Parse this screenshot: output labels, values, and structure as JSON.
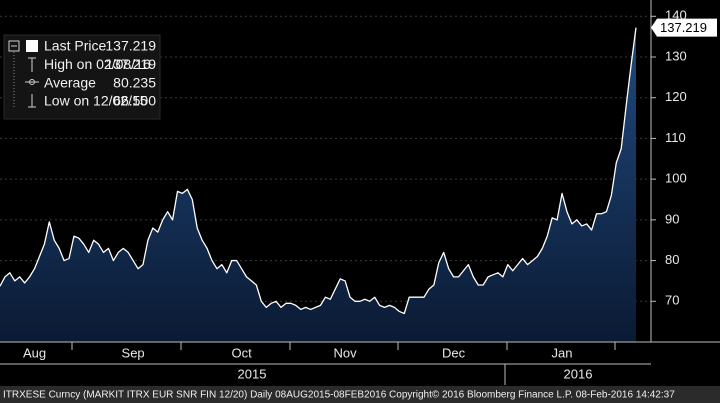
{
  "chart_data": {
    "type": "area",
    "color": "#ffffff",
    "fill": "#12325c",
    "categories": [
      null,
      null,
      null,
      null,
      null,
      null,
      null,
      "Aug",
      null,
      null,
      null,
      null,
      null,
      null,
      null,
      null,
      null,
      null,
      null,
      null,
      null,
      null,
      null,
      null,
      null,
      null,
      null,
      "Sep",
      null,
      null,
      null,
      null,
      null,
      null,
      null,
      null,
      null,
      null,
      null,
      null,
      null,
      null,
      null,
      null,
      null,
      null,
      null,
      null,
      null,
      "Oct",
      null,
      null,
      null,
      null,
      null,
      null,
      null,
      null,
      null,
      null,
      null,
      null,
      null,
      null,
      null,
      null,
      null,
      null,
      null,
      null,
      "Nov",
      null,
      null,
      null,
      null,
      null,
      null,
      null,
      null,
      null,
      null,
      null,
      null,
      null,
      null,
      null,
      null,
      null,
      null,
      null,
      null,
      null,
      "Dec",
      null,
      null,
      null,
      null,
      null,
      null,
      null,
      null,
      null,
      null,
      null,
      null,
      null,
      null,
      null,
      null,
      null,
      null,
      null,
      null,
      null,
      "Jan",
      null,
      null,
      null,
      null,
      null,
      null,
      null,
      null,
      null,
      null,
      null,
      null,
      null,
      null,
      null
    ],
    "values": [
      73.7,
      76,
      77,
      75,
      76,
      74.5,
      76,
      78,
      81,
      84,
      89.5,
      85,
      83,
      80,
      80.5,
      86,
      85.5,
      84,
      82,
      85,
      84,
      82,
      83,
      80,
      82,
      83,
      82,
      80,
      78,
      79,
      85,
      88,
      87,
      90,
      92,
      90,
      97,
      96.5,
      97.5,
      95,
      88,
      85,
      83,
      80,
      78,
      79,
      77,
      80,
      80,
      78,
      76,
      75,
      74,
      70,
      68.5,
      69.5,
      70,
      68.5,
      69.5,
      69.5,
      69,
      68,
      68.5,
      68,
      68.5,
      69,
      71,
      70.5,
      73,
      75.5,
      75,
      71,
      70,
      70,
      70.5,
      70,
      71,
      69,
      68.5,
      69,
      68.5,
      67.5,
      67,
      71,
      71,
      71,
      71,
      73,
      74,
      79.5,
      82,
      78,
      76,
      76,
      77.5,
      79,
      76,
      74,
      74,
      76,
      76.5,
      77,
      76,
      79,
      77.5,
      79,
      80.5,
      79,
      80,
      81,
      83,
      86,
      90.5,
      90,
      96.5,
      92,
      89,
      90,
      88.5,
      89,
      87.5,
      91.5,
      91.5,
      92,
      96,
      104,
      107.5,
      118,
      128,
      137.219
    ],
    "years": [
      "2015",
      "2016"
    ],
    "ylim": [
      60,
      144
    ],
    "yticks": [
      70,
      80,
      90,
      100,
      110,
      120,
      130,
      140
    ],
    "grid": true,
    "legend_stats": [
      {
        "label": "Last Price",
        "value": 137.219
      },
      {
        "label": "High on 02/08/16",
        "value": 137.219
      },
      {
        "label": "Average",
        "value": 80.235
      },
      {
        "label": "Low on 12/02/15",
        "value": {
          "value": 66.5,
          "label": "66.500"
        }
      }
    ],
    "footer": "ITRXESE Curncy (MARKIT ITRX EUR SNR FIN 12/20)  Daily 08AUG2015-08FEB2016 Copyright© 2016 Bloomberg Finance L.P.  08-Feb-2016 14:42:37"
  }
}
